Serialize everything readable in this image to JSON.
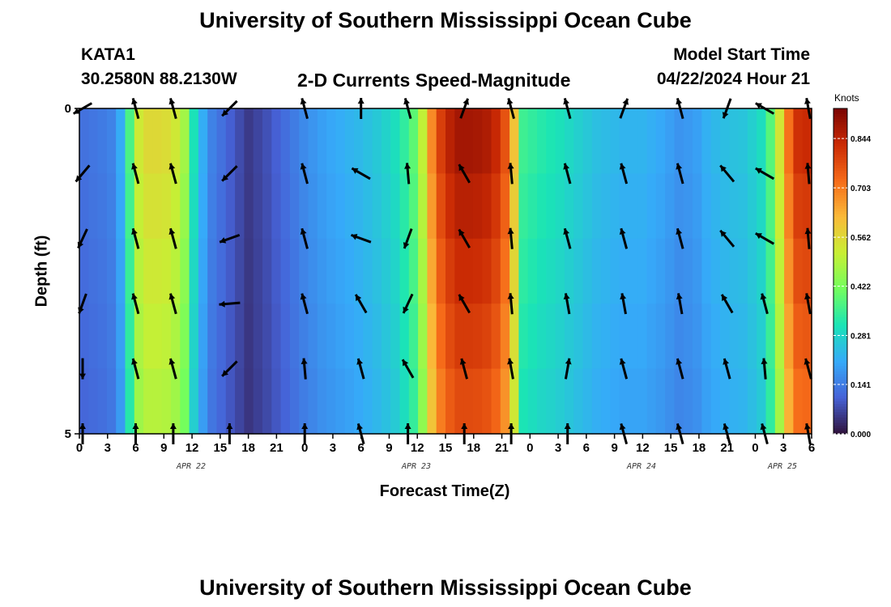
{
  "header": {
    "title": "University of Southern Mississippi Ocean Cube",
    "station_id": "KATA1",
    "station_coords": "30.2580N  88.2130W",
    "subtitle": "2-D Currents Speed-Magnitude",
    "model_label": "Model Start Time",
    "model_time": "04/22/2024 Hour 21"
  },
  "footer": {
    "title": "University of Southern Mississippi Ocean Cube"
  },
  "colors": {
    "arrow": "#000000",
    "scale": [
      "#30123b",
      "#4662d7",
      "#36aaf9",
      "#1ae4b6",
      "#72fe5e",
      "#c8ef34",
      "#faba39",
      "#f66b19",
      "#ca2a04",
      "#7a0403"
    ]
  },
  "chart_data": {
    "type": "heatmap",
    "xlabel": "Forecast Time(Z)",
    "ylabel": "Depth (ft)",
    "x_ticks": [
      "0",
      "3",
      "6",
      "9",
      "12",
      "15",
      "18",
      "21",
      "0",
      "3",
      "6",
      "9",
      "12",
      "15",
      "18",
      "21",
      "0",
      "3",
      "6",
      "9",
      "12",
      "15",
      "18",
      "21",
      "0",
      "3",
      "6"
    ],
    "date_labels": [
      {
        "label": "APR 22",
        "at_tick": 11
      },
      {
        "label": "APR 23",
        "at_tick": 19
      },
      {
        "label": "APR 24",
        "at_tick": 27
      },
      {
        "label": "APR 25",
        "at_tick": 32
      }
    ],
    "x_hours_range": [
      0,
      78
    ],
    "y_ticks": [
      "0",
      "5"
    ],
    "ylim": [
      0,
      5
    ],
    "colorbar": {
      "unit": "Knots",
      "ticks": [
        "0.844",
        "0.703",
        "0.562",
        "0.422",
        "0.281",
        "0.141",
        "0.000"
      ],
      "range": [
        0,
        0.93
      ]
    },
    "speed_time_profile": [
      [
        0,
        0.12
      ],
      [
        3,
        0.14
      ],
      [
        4,
        0.16
      ],
      [
        5,
        0.28
      ],
      [
        6,
        0.5
      ],
      [
        7,
        0.55
      ],
      [
        9,
        0.55
      ],
      [
        11,
        0.5
      ],
      [
        12,
        0.32
      ],
      [
        13,
        0.22
      ],
      [
        14,
        0.15
      ],
      [
        16,
        0.1
      ],
      [
        18,
        0.05
      ],
      [
        20,
        0.08
      ],
      [
        22,
        0.12
      ],
      [
        24,
        0.16
      ],
      [
        26,
        0.19
      ],
      [
        28,
        0.21
      ],
      [
        30,
        0.23
      ],
      [
        32,
        0.26
      ],
      [
        34,
        0.3
      ],
      [
        36,
        0.4
      ],
      [
        38,
        0.75
      ],
      [
        40,
        0.86
      ],
      [
        42,
        0.86
      ],
      [
        44,
        0.84
      ],
      [
        46,
        0.7
      ],
      [
        47,
        0.35
      ],
      [
        49,
        0.32
      ],
      [
        51,
        0.3
      ],
      [
        53,
        0.27
      ],
      [
        55,
        0.24
      ],
      [
        58,
        0.22
      ],
      [
        60,
        0.22
      ],
      [
        62,
        0.2
      ],
      [
        64,
        0.17
      ],
      [
        66,
        0.19
      ],
      [
        67,
        0.22
      ],
      [
        69,
        0.24
      ],
      [
        71,
        0.25
      ],
      [
        73,
        0.3
      ],
      [
        74,
        0.42
      ],
      [
        75,
        0.6
      ],
      [
        76,
        0.78
      ],
      [
        77,
        0.82
      ],
      [
        78,
        0.8
      ]
    ],
    "depth_levels_ft": [
      0,
      1,
      2,
      3,
      4,
      5
    ],
    "arrow_columns_hours": [
      0,
      6,
      10,
      16,
      24,
      30,
      35,
      41,
      46,
      52,
      58,
      64,
      69,
      73,
      78
    ],
    "arrow_directions_deg": [
      [
        240,
        345,
        345,
        225,
        345,
        0,
        345,
        20,
        345,
        345,
        20,
        345,
        200,
        300,
        350
      ],
      [
        220,
        345,
        345,
        225,
        345,
        300,
        355,
        330,
        355,
        345,
        345,
        345,
        320,
        300,
        355
      ],
      [
        205,
        345,
        345,
        250,
        345,
        290,
        200,
        330,
        355,
        345,
        345,
        345,
        320,
        300,
        355
      ],
      [
        200,
        345,
        345,
        265,
        345,
        330,
        205,
        330,
        355,
        350,
        350,
        350,
        330,
        345,
        350
      ],
      [
        180,
        345,
        345,
        225,
        355,
        345,
        330,
        345,
        350,
        10,
        345,
        345,
        345,
        355,
        345
      ],
      [
        0,
        0,
        0,
        0,
        0,
        345,
        0,
        0,
        0,
        0,
        345,
        345,
        345,
        345,
        350
      ]
    ]
  }
}
